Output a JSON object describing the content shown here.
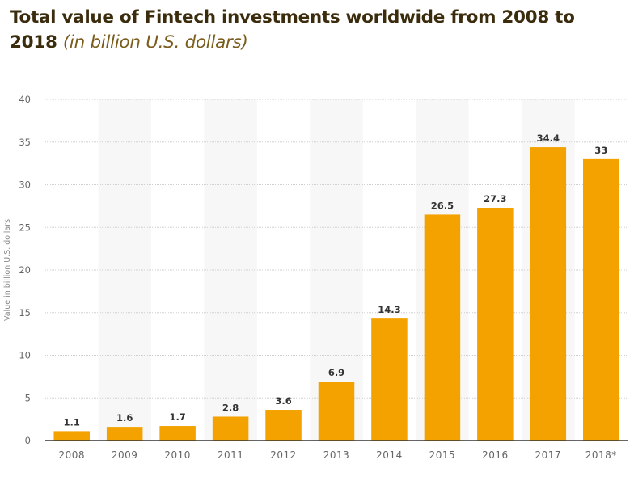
{
  "chart_data": {
    "type": "bar",
    "title": "Total value of Fintech investments worldwide from 2008 to 2018",
    "subtitle": "(in billion U.S. dollars)",
    "xlabel": "",
    "ylabel": "Value in billion U.S. dollars",
    "categories": [
      "2008",
      "2009",
      "2010",
      "2011",
      "2012",
      "2013",
      "2014",
      "2015",
      "2016",
      "2017",
      "2018*"
    ],
    "values": [
      1.1,
      1.6,
      1.7,
      2.8,
      3.6,
      6.9,
      14.3,
      26.5,
      27.3,
      34.4,
      33
    ],
    "data_labels": [
      "1.1",
      "1.6",
      "1.7",
      "2.8",
      "3.6",
      "6.9",
      "14.3",
      "26.5",
      "27.3",
      "34.4",
      "33"
    ],
    "ylim": [
      0,
      40
    ],
    "yticks": [
      0,
      5,
      10,
      15,
      20,
      25,
      30,
      35,
      40
    ],
    "grid": true,
    "legend": "none",
    "colors": {
      "bar": "#f4a200",
      "band": "#f7f7f7",
      "grid": "#d0d0d0",
      "axis": "#333333",
      "title": "#3a2c0c",
      "subtitle": "#7a5c1c"
    }
  }
}
